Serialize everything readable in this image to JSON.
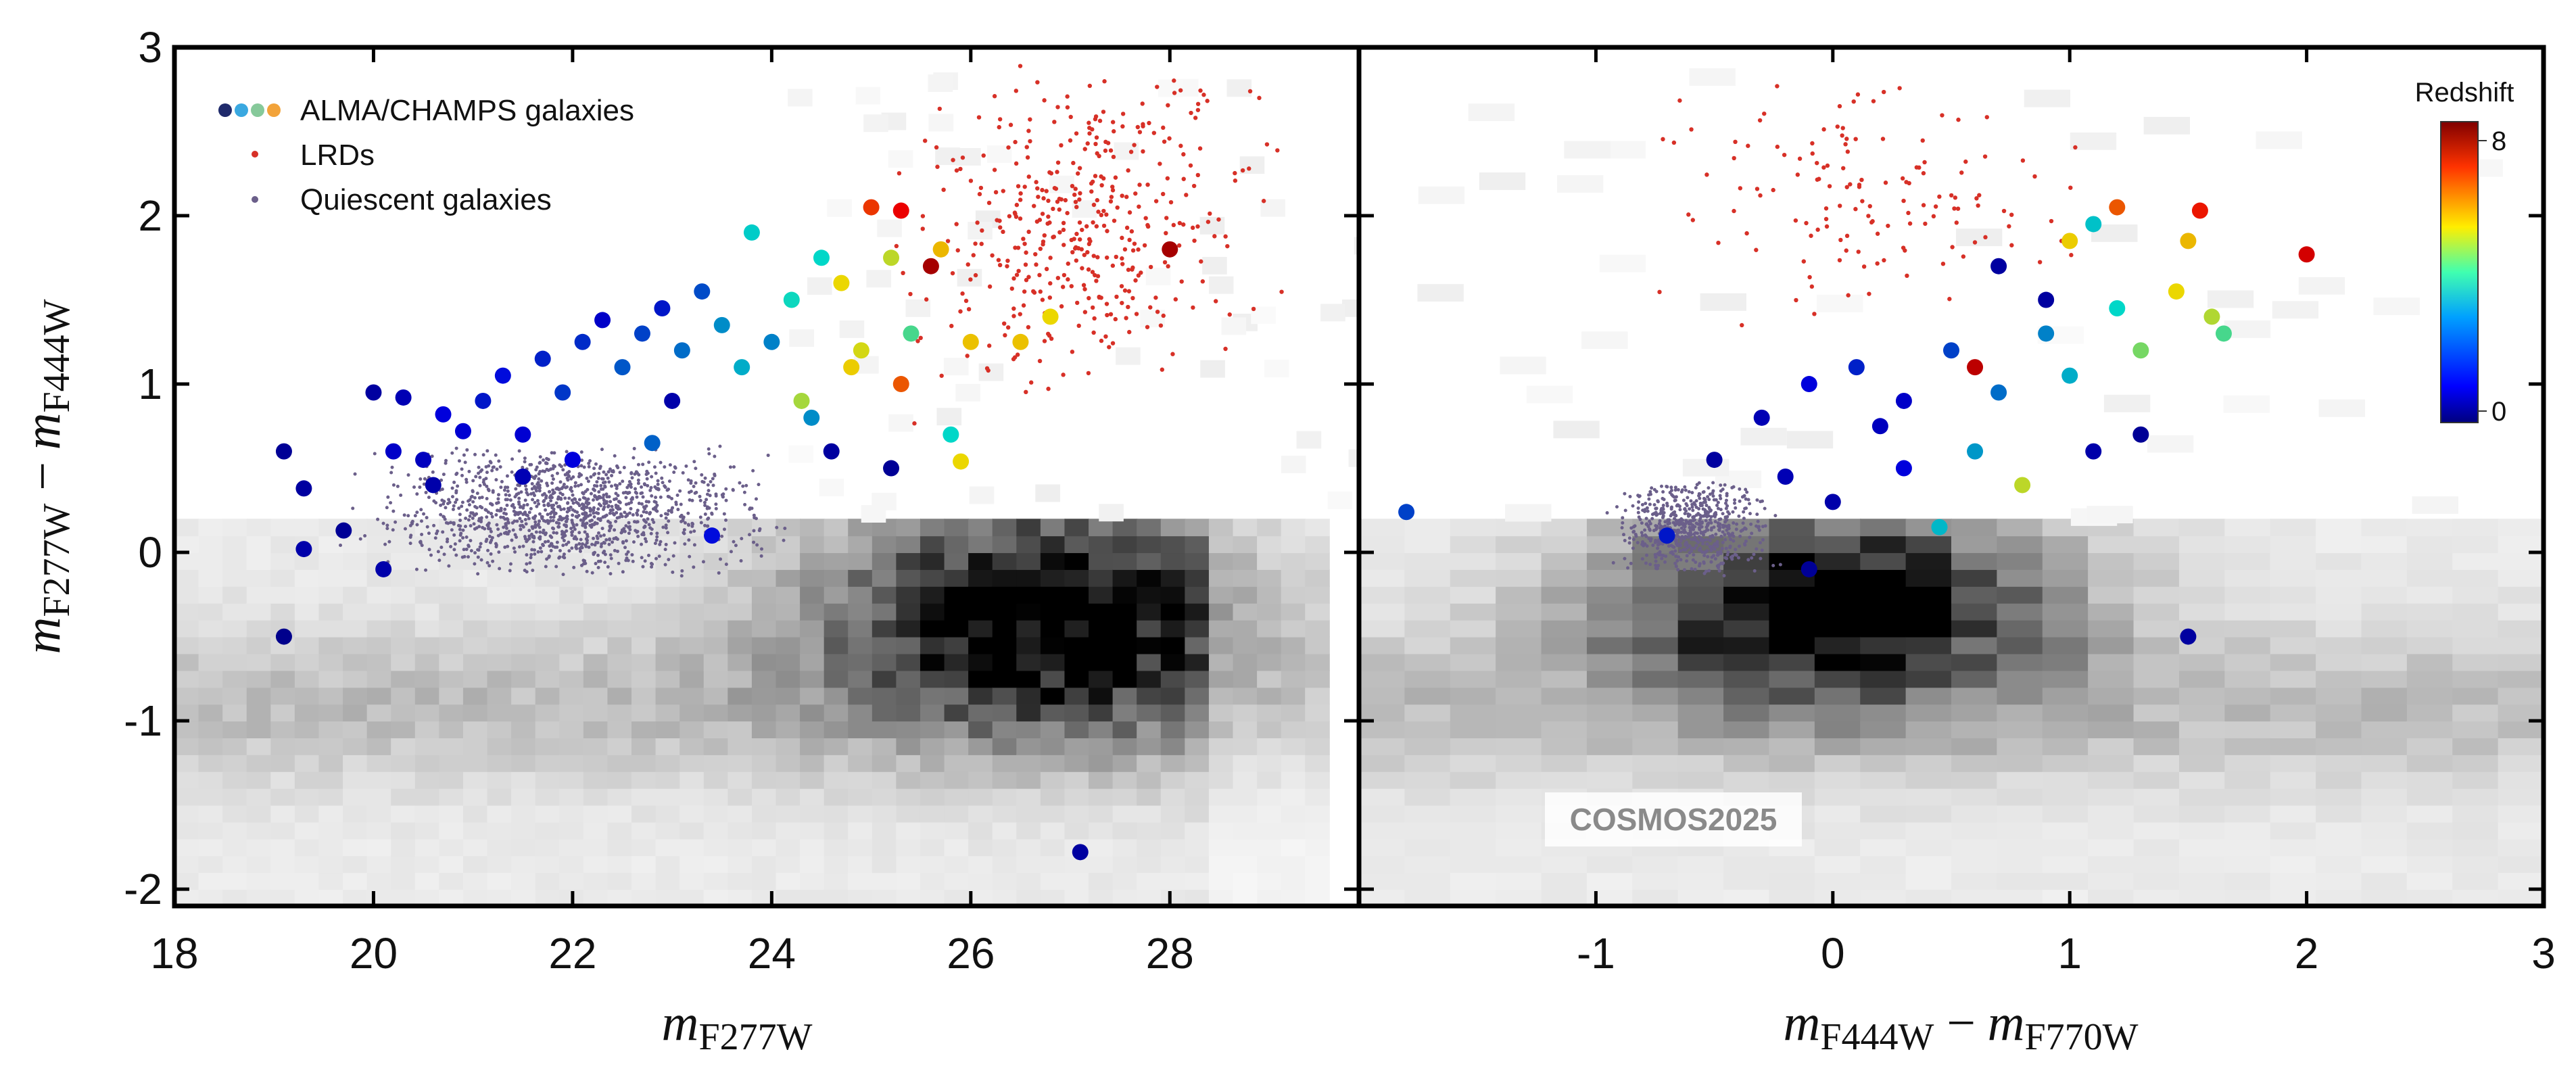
{
  "chart_data": [
    {
      "type": "scatter",
      "panel": "left",
      "xlabel": {
        "main": "m",
        "sub": "F277W"
      },
      "ylabel": {
        "main1": "m",
        "sub1": "F277W",
        "dash": "−",
        "main2": "m",
        "sub2": "F444W"
      },
      "xlim": [
        18,
        29.9
      ],
      "ylim": [
        -2.1,
        3.0
      ],
      "xticks": [
        "18",
        "20",
        "22",
        "24",
        "26",
        "28"
      ],
      "yticks": [
        "-2",
        "-1",
        "0",
        "1",
        "2",
        "3"
      ],
      "legend": {
        "placement": "top-left",
        "entries": [
          "ALMA/CHAMPS galaxies",
          "LRDs",
          "Quiescent galaxies"
        ]
      },
      "series": [
        {
          "name": "ALMA/CHAMPS galaxies",
          "color_by": "redshift",
          "points": [
            {
              "x": 19.1,
              "y": 0.6,
              "z": 0.3
            },
            {
              "x": 19.3,
              "y": 0.38,
              "z": 0.4
            },
            {
              "x": 19.1,
              "y": -0.5,
              "z": 0.2
            },
            {
              "x": 19.3,
              "y": 0.02,
              "z": 0.5
            },
            {
              "x": 19.7,
              "y": 0.13,
              "z": 0.3
            },
            {
              "x": 20.1,
              "y": -0.1,
              "z": 0.5
            },
            {
              "x": 20.0,
              "y": 0.95,
              "z": 0.4
            },
            {
              "x": 20.3,
              "y": 0.92,
              "z": 0.6
            },
            {
              "x": 20.2,
              "y": 0.6,
              "z": 0.8
            },
            {
              "x": 20.5,
              "y": 0.55,
              "z": 0.7
            },
            {
              "x": 20.7,
              "y": 0.82,
              "z": 1.0
            },
            {
              "x": 20.9,
              "y": 0.72,
              "z": 0.9
            },
            {
              "x": 21.1,
              "y": 0.9,
              "z": 1.2
            },
            {
              "x": 21.3,
              "y": 1.05,
              "z": 1.1
            },
            {
              "x": 21.5,
              "y": 0.7,
              "z": 0.9
            },
            {
              "x": 21.7,
              "y": 1.15,
              "z": 1.3
            },
            {
              "x": 21.9,
              "y": 0.95,
              "z": 1.5
            },
            {
              "x": 22.1,
              "y": 1.25,
              "z": 1.4
            },
            {
              "x": 22.3,
              "y": 1.38,
              "z": 0.8
            },
            {
              "x": 22.5,
              "y": 1.1,
              "z": 1.8
            },
            {
              "x": 22.7,
              "y": 1.3,
              "z": 1.6
            },
            {
              "x": 22.9,
              "y": 1.45,
              "z": 1.2
            },
            {
              "x": 23.1,
              "y": 1.2,
              "z": 2.0
            },
            {
              "x": 23.3,
              "y": 1.55,
              "z": 1.7
            },
            {
              "x": 23.5,
              "y": 1.35,
              "z": 2.3
            },
            {
              "x": 23.7,
              "y": 1.1,
              "z": 2.6
            },
            {
              "x": 23.8,
              "y": 1.9,
              "z": 2.9
            },
            {
              "x": 24.0,
              "y": 1.25,
              "z": 2.2
            },
            {
              "x": 24.2,
              "y": 1.5,
              "z": 3.1
            },
            {
              "x": 24.3,
              "y": 0.9,
              "z": 4.4
            },
            {
              "x": 24.5,
              "y": 1.75,
              "z": 3.0
            },
            {
              "x": 24.7,
              "y": 1.6,
              "z": 5.0
            },
            {
              "x": 24.9,
              "y": 1.2,
              "z": 4.8
            },
            {
              "x": 25.0,
              "y": 2.05,
              "z": 6.5
            },
            {
              "x": 25.2,
              "y": 1.75,
              "z": 4.6
            },
            {
              "x": 25.3,
              "y": 2.03,
              "z": 7.0
            },
            {
              "x": 25.2,
              "y": 0.5,
              "z": 0.3
            },
            {
              "x": 25.4,
              "y": 1.3,
              "z": 3.6
            },
            {
              "x": 25.6,
              "y": 1.7,
              "z": 7.6
            },
            {
              "x": 25.7,
              "y": 1.8,
              "z": 5.3
            },
            {
              "x": 25.3,
              "y": 1.0,
              "z": 6.2
            },
            {
              "x": 26.0,
              "y": 1.25,
              "z": 5.2
            },
            {
              "x": 25.8,
              "y": 0.7,
              "z": 3.0
            },
            {
              "x": 25.9,
              "y": 0.54,
              "z": 5.0
            },
            {
              "x": 26.5,
              "y": 1.25,
              "z": 5.2
            },
            {
              "x": 26.8,
              "y": 1.4,
              "z": 5.0
            },
            {
              "x": 27.1,
              "y": -1.78,
              "z": 0.4
            },
            {
              "x": 23.4,
              "y": 0.1,
              "z": 1.1
            },
            {
              "x": 22.8,
              "y": 0.65,
              "z": 1.9
            },
            {
              "x": 23.0,
              "y": 0.9,
              "z": 0.5
            },
            {
              "x": 24.6,
              "y": 0.6,
              "z": 0.4
            },
            {
              "x": 24.4,
              "y": 0.8,
              "z": 2.3
            },
            {
              "x": 24.8,
              "y": 1.1,
              "z": 5.1
            },
            {
              "x": 28.0,
              "y": 1.8,
              "z": 7.6
            },
            {
              "x": 21.5,
              "y": 0.45,
              "z": 0.6
            },
            {
              "x": 20.6,
              "y": 0.4,
              "z": 0.5
            },
            {
              "x": 22.0,
              "y": 0.55,
              "z": 1.0
            }
          ]
        },
        {
          "name": "LRDs",
          "color": "#d73027",
          "count": 420,
          "x_range": [
            24.8,
            29.4
          ],
          "y_range": [
            0.9,
            3.0
          ]
        },
        {
          "name": "Quiescent galaxies",
          "color": "#6b5f8a",
          "count": 1300,
          "x_range": [
            19.5,
            24.5
          ],
          "y_range": [
            -0.15,
            0.65
          ]
        }
      ],
      "background": {
        "name": "COSMOS2025 density",
        "type": "heatmap",
        "x_range": [
          18.0,
          29.6
        ],
        "y_range": [
          -2.1,
          0.2
        ],
        "bins": [
          48,
          23
        ],
        "peak": {
          "x": 26.8,
          "y": -0.35
        },
        "colormap": "gray"
      }
    },
    {
      "type": "scatter",
      "panel": "right",
      "xlabel": {
        "main1": "m",
        "sub1": "F444W",
        "dash": "−",
        "main2": "m",
        "sub2": "F770W"
      },
      "xlim": [
        -2.0,
        3.0
      ],
      "ylim": [
        -2.1,
        3.0
      ],
      "xticks": [
        "-1",
        "0",
        "1",
        "2",
        "3"
      ],
      "watermark": "COSMOS2025",
      "colorbar": {
        "title": "Redshift",
        "min_label": "0",
        "max_label": "8",
        "range": [
          0,
          8
        ],
        "colormap": "jet"
      },
      "series": [
        {
          "name": "ALMA/CHAMPS galaxies",
          "color_by": "redshift",
          "points": [
            {
              "x": -1.8,
              "y": 0.24,
              "z": 1.6
            },
            {
              "x": -0.7,
              "y": 0.1,
              "z": 1.2
            },
            {
              "x": -0.1,
              "y": -0.1,
              "z": 0.3
            },
            {
              "x": 1.5,
              "y": -0.5,
              "z": 0.4
            },
            {
              "x": -0.5,
              "y": 0.55,
              "z": 0.4
            },
            {
              "x": -0.3,
              "y": 0.8,
              "z": 0.6
            },
            {
              "x": -0.1,
              "y": 1.0,
              "z": 1.0
            },
            {
              "x": 0.1,
              "y": 1.1,
              "z": 1.3
            },
            {
              "x": 0.3,
              "y": 0.9,
              "z": 0.8
            },
            {
              "x": 0.5,
              "y": 1.2,
              "z": 1.6
            },
            {
              "x": 0.7,
              "y": 0.95,
              "z": 2.0
            },
            {
              "x": 0.9,
              "y": 1.3,
              "z": 2.2
            },
            {
              "x": 1.0,
              "y": 1.05,
              "z": 2.6
            },
            {
              "x": 1.2,
              "y": 1.45,
              "z": 3.0
            },
            {
              "x": 1.3,
              "y": 1.2,
              "z": 4.0
            },
            {
              "x": 1.45,
              "y": 1.55,
              "z": 5.0
            },
            {
              "x": 1.5,
              "y": 1.85,
              "z": 5.3
            },
            {
              "x": 1.55,
              "y": 2.03,
              "z": 6.8
            },
            {
              "x": 1.6,
              "y": 1.4,
              "z": 4.5
            },
            {
              "x": 1.65,
              "y": 1.3,
              "z": 3.6
            },
            {
              "x": 2.0,
              "y": 1.77,
              "z": 7.2
            },
            {
              "x": 1.2,
              "y": 2.05,
              "z": 6.2
            },
            {
              "x": 0.9,
              "y": 1.5,
              "z": 0.4
            },
            {
              "x": 0.6,
              "y": 0.6,
              "z": 2.4
            },
            {
              "x": 0.8,
              "y": 0.4,
              "z": 4.6
            },
            {
              "x": 1.1,
              "y": 0.6,
              "z": 0.5
            },
            {
              "x": 1.3,
              "y": 0.7,
              "z": 0.3
            },
            {
              "x": 0.3,
              "y": 0.5,
              "z": 1.0
            },
            {
              "x": 0.0,
              "y": 0.3,
              "z": 0.5
            },
            {
              "x": 0.7,
              "y": 1.7,
              "z": 0.4
            },
            {
              "x": 1.0,
              "y": 1.85,
              "z": 5.1
            },
            {
              "x": 1.1,
              "y": 1.95,
              "z": 2.8
            },
            {
              "x": 0.45,
              "y": 0.15,
              "z": 2.7
            },
            {
              "x": -0.2,
              "y": 0.45,
              "z": 0.6
            },
            {
              "x": 0.2,
              "y": 0.75,
              "z": 0.7
            },
            {
              "x": 0.6,
              "y": 1.1,
              "z": 7.4
            }
          ]
        },
        {
          "name": "LRDs",
          "color": "#d73027",
          "count": 140,
          "x_range": [
            -1.0,
            1.3
          ],
          "y_range": [
            1.3,
            2.9
          ]
        },
        {
          "name": "Quiescent galaxies",
          "color": "#6b5f8a",
          "count": 650,
          "x_range": [
            -1.0,
            -0.2
          ],
          "y_range": [
            -0.15,
            0.45
          ]
        }
      ],
      "background": {
        "name": "COSMOS2025 density",
        "type": "heatmap",
        "x_range": [
          -2.0,
          3.0
        ],
        "y_range": [
          -2.1,
          0.2
        ],
        "bins": [
          26,
          23
        ],
        "peak": {
          "x": 0.0,
          "y": -0.3
        },
        "colormap": "gray"
      }
    }
  ]
}
